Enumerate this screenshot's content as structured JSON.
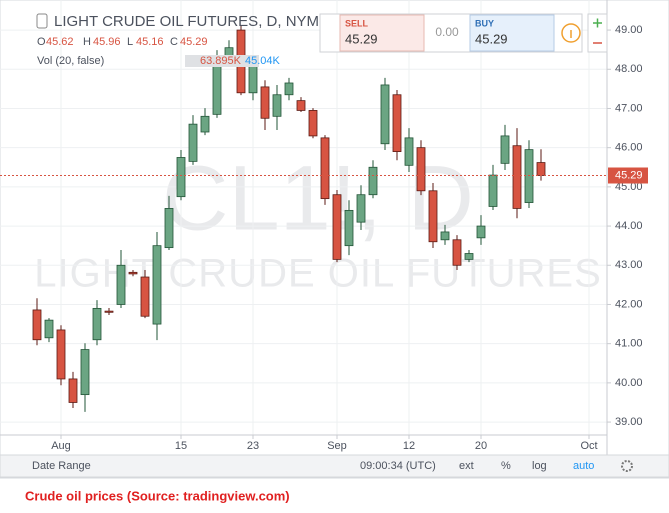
{
  "chart_data": {
    "type": "candlestick",
    "title": "LIGHT CRUDE OIL FUTURES, D, NYME",
    "watermark": [
      "CL1!, D",
      "LIGHT CRUDE OIL FUTURES"
    ],
    "ohlc_legend": {
      "open_label": "O",
      "open": 45.62,
      "high_label": "H",
      "high": 45.96,
      "low_label": "L",
      "low": 45.16,
      "close_label": "C",
      "close": 45.29
    },
    "volume_legend": {
      "label": "Vol (20, false)",
      "volume": "63.895K",
      "average": "45.04K"
    },
    "trade_panel": {
      "sell_label": "SELL",
      "sell": 45.29,
      "spread": "0.00",
      "buy_label": "BUY",
      "buy": 45.29
    },
    "open": [
      41.86,
      41.15,
      41.35,
      40.1,
      39.7,
      41.1,
      41.83,
      42.0,
      42.82,
      42.7,
      41.5,
      43.45,
      44.75,
      45.65,
      46.4,
      46.85,
      48.3,
      49.0,
      47.4,
      47.55,
      46.8,
      47.35,
      47.2,
      46.95,
      46.25,
      44.8,
      43.5,
      44.1,
      44.8,
      46.1,
      47.35,
      45.55,
      46.0,
      44.9,
      43.65,
      43.65,
      43.15,
      43.7,
      44.5,
      45.6,
      46.05,
      44.6,
      45.62
    ],
    "high": [
      42.16,
      41.65,
      41.47,
      40.28,
      41.01,
      42.11,
      41.91,
      43.39,
      42.88,
      42.88,
      43.85,
      44.77,
      45.94,
      46.83,
      47.01,
      48.49,
      48.74,
      49.13,
      48.29,
      47.72,
      47.6,
      47.78,
      47.29,
      47.01,
      46.32,
      44.92,
      44.66,
      45.04,
      45.68,
      47.78,
      47.47,
      46.5,
      46.19,
      45.1,
      44.03,
      43.77,
      43.39,
      44.28,
      45.56,
      46.58,
      46.5,
      46.19,
      45.96
    ],
    "low": [
      40.96,
      41.04,
      39.94,
      39.36,
      39.26,
      40.96,
      41.73,
      41.91,
      42.72,
      41.65,
      41.09,
      43.39,
      44.66,
      45.56,
      46.32,
      46.76,
      48.18,
      47.34,
      47.21,
      46.45,
      46.45,
      47.21,
      46.91,
      46.24,
      44.54,
      43.08,
      43.26,
      43.9,
      44.71,
      45.94,
      45.68,
      45.38,
      44.79,
      43.44,
      43.52,
      42.88,
      43.08,
      43.52,
      44.41,
      45.43,
      44.2,
      44.46,
      45.16
    ],
    "close": [
      41.1,
      41.6,
      40.1,
      39.5,
      40.85,
      41.9,
      41.8,
      43.0,
      42.78,
      41.7,
      43.5,
      44.45,
      45.75,
      46.6,
      46.8,
      48.3,
      48.55,
      47.4,
      48.1,
      46.75,
      47.35,
      47.65,
      46.95,
      46.3,
      44.7,
      43.15,
      44.4,
      44.8,
      45.5,
      47.6,
      45.9,
      46.25,
      44.9,
      43.6,
      43.85,
      43.0,
      43.3,
      44.0,
      45.3,
      46.3,
      44.45,
      45.95,
      45.29
    ],
    "up_color": "#6ba583",
    "up_border": "#225437",
    "down_color": "#d75442",
    "down_border": "#5b1a13",
    "price_line": 45.29,
    "price_line_color": "#d75442",
    "xlim": [
      -0.5,
      47.5
    ],
    "xticks": [
      {
        "value": 2,
        "label": "Aug"
      },
      {
        "value": 12,
        "label": "15"
      },
      {
        "value": 18,
        "label": "23"
      },
      {
        "value": 25,
        "label": "Sep"
      },
      {
        "value": 31,
        "label": "12"
      },
      {
        "value": 37,
        "label": "20"
      },
      {
        "value": 46,
        "label": "Oct"
      }
    ],
    "ylim": [
      38.67,
      49.41
    ],
    "yticks": [
      {
        "value": 39,
        "label": "39.00"
      },
      {
        "value": 40,
        "label": "40.00"
      },
      {
        "value": 41,
        "label": "41.00"
      },
      {
        "value": 42,
        "label": "42.00"
      },
      {
        "value": 43,
        "label": "43.00"
      },
      {
        "value": 44,
        "label": "44.00"
      },
      {
        "value": 45,
        "label": "45.00"
      },
      {
        "value": 46,
        "label": "46.00"
      },
      {
        "value": 47,
        "label": "47.00"
      },
      {
        "value": 48,
        "label": "48.00"
      },
      {
        "value": 49,
        "label": "49.00"
      }
    ],
    "grid": true,
    "toolbar": [
      "Date Range",
      "09:00:34 (UTC)",
      "ext",
      "%",
      "log",
      "auto"
    ],
    "caption": "Crude oil prices (Source: tradingview.com)"
  }
}
